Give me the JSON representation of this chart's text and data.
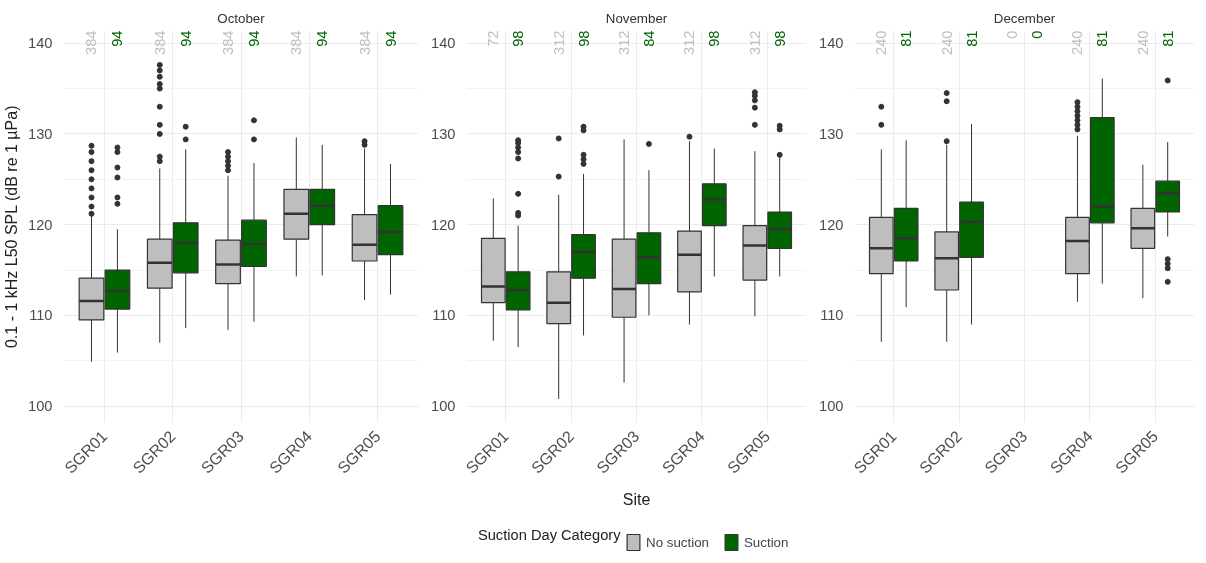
{
  "chart_data": [
    {
      "type": "box",
      "title": "October",
      "ylabel": "0.1 - 1 kHz L50 SPL (dB re 1 µPa)",
      "categories": [
        "SGR01",
        "SGR02",
        "SGR03",
        "SGR04",
        "SGR05"
      ],
      "ylim": [
        98.2,
        141.4
      ],
      "yticks": [
        100,
        110,
        120,
        130,
        140
      ],
      "grid": true,
      "series": [
        {
          "color": "#bebebe",
          "value_labels": [
            "384",
            "384",
            "384",
            "384",
            "384"
          ],
          "boxes": [
            {
              "low": 104.9,
              "q1": 109.5,
              "median": 111.6,
              "q3": 114.1,
              "high": 121.0,
              "outliers": [
                121.2,
                122,
                123,
                124,
                125,
                126,
                127,
                128,
                128.7
              ]
            },
            {
              "low": 107.0,
              "q1": 113.0,
              "median": 115.8,
              "q3": 118.4,
              "high": 126.2,
              "outliers": [
                127,
                127.5,
                130,
                131,
                133,
                135,
                135.5,
                136.3,
                137,
                137.6
              ]
            },
            {
              "low": 108.4,
              "q1": 113.5,
              "median": 115.6,
              "q3": 118.3,
              "high": 125.4,
              "outliers": [
                126,
                126.5,
                127,
                127.5,
                128
              ]
            },
            {
              "low": 114.3,
              "q1": 118.4,
              "median": 121.2,
              "q3": 123.9,
              "high": 129.6
            },
            {
              "low": 111.7,
              "q1": 116.0,
              "median": 117.8,
              "q3": 121.1,
              "high": 128.4,
              "outliers": [
                128.8,
                129.2
              ]
            }
          ]
        },
        {
          "color": "#006400",
          "value_labels": [
            "94",
            "94",
            "94",
            "94",
            "94"
          ],
          "boxes": [
            {
              "low": 105.9,
              "q1": 110.7,
              "median": 112.7,
              "q3": 115.0,
              "high": 119.5,
              "outliers": [
                122.3,
                123,
                125.2,
                126.3,
                128,
                128.5
              ]
            },
            {
              "low": 108.6,
              "q1": 114.7,
              "median": 118.0,
              "q3": 120.2,
              "high": 128.3,
              "outliers": [
                129.4,
                130.8
              ]
            },
            {
              "low": 109.3,
              "q1": 115.4,
              "median": 117.9,
              "q3": 120.5,
              "high": 126.8,
              "outliers": [
                129.4,
                131.5
              ]
            },
            {
              "low": 114.4,
              "q1": 120.0,
              "median": 122.1,
              "q3": 123.9,
              "high": 128.8
            },
            {
              "low": 112.3,
              "q1": 116.7,
              "median": 119.2,
              "q3": 122.1,
              "high": 126.7
            }
          ]
        }
      ]
    },
    {
      "type": "box",
      "title": "November",
      "xlabel": "Site",
      "legend_title": "Suction Day Category",
      "legend": "bottom",
      "categories": [
        "SGR01",
        "SGR02",
        "SGR03",
        "SGR04",
        "SGR05"
      ],
      "ylim": [
        98.2,
        141.4
      ],
      "yticks": [
        100,
        110,
        120,
        130,
        140
      ],
      "grid": true,
      "series": [
        {
          "name": "No suction",
          "color": "#bebebe",
          "value_labels": [
            "72",
            "312",
            "312",
            "312",
            "312"
          ],
          "boxes": [
            {
              "low": 107.2,
              "q1": 111.4,
              "median": 113.2,
              "q3": 118.5,
              "high": 122.9
            },
            {
              "low": 100.8,
              "q1": 109.1,
              "median": 111.4,
              "q3": 114.8,
              "high": 123.3,
              "outliers": [
                125.3,
                129.5
              ]
            },
            {
              "low": 102.6,
              "q1": 109.8,
              "median": 112.9,
              "q3": 118.4,
              "high": 129.4
            },
            {
              "low": 109.0,
              "q1": 112.6,
              "median": 116.7,
              "q3": 119.3,
              "high": 129.2,
              "outliers": [
                129.7
              ]
            },
            {
              "low": 109.9,
              "q1": 113.9,
              "median": 117.7,
              "q3": 119.9,
              "high": 128.1,
              "outliers": [
                131,
                132.9,
                133.7,
                134.2,
                134.6
              ]
            }
          ]
        },
        {
          "name": "Suction",
          "color": "#006400",
          "value_labels": [
            "98",
            "98",
            "84",
            "98",
            "98"
          ],
          "boxes": [
            {
              "low": 106.5,
              "q1": 110.6,
              "median": 112.8,
              "q3": 114.8,
              "high": 119.9,
              "outliers": [
                121,
                121.3,
                123.4,
                127.3,
                128,
                128.5,
                129,
                129.3
              ]
            },
            {
              "low": 107.8,
              "q1": 114.1,
              "median": 117.0,
              "q3": 118.9,
              "high": 125.6,
              "outliers": [
                126.7,
                127.2,
                127.7,
                130.4,
                130.8
              ]
            },
            {
              "low": 110.0,
              "q1": 113.5,
              "median": 116.4,
              "q3": 119.1,
              "high": 126.0,
              "outliers": [
                128.9
              ]
            },
            {
              "low": 114.3,
              "q1": 119.9,
              "median": 122.8,
              "q3": 124.5,
              "high": 128.4
            },
            {
              "low": 114.3,
              "q1": 117.4,
              "median": 119.5,
              "q3": 121.4,
              "high": 127.5,
              "outliers": [
                127.7,
                130.5,
                130.9
              ]
            }
          ]
        }
      ]
    },
    {
      "type": "box",
      "title": "December",
      "categories": [
        "SGR01",
        "SGR02",
        "SGR03",
        "SGR04",
        "SGR05"
      ],
      "ylim": [
        98.2,
        141.4
      ],
      "yticks": [
        100,
        110,
        120,
        130,
        140
      ],
      "grid": true,
      "series": [
        {
          "color": "#bebebe",
          "value_labels": [
            "240",
            "240",
            "0",
            "240",
            "240"
          ],
          "boxes": [
            {
              "low": 107.1,
              "q1": 114.6,
              "median": 117.4,
              "q3": 120.8,
              "high": 128.3,
              "outliers": [
                131,
                133
              ]
            },
            {
              "low": 107.1,
              "q1": 112.8,
              "median": 116.3,
              "q3": 119.2,
              "high": 128.8,
              "outliers": [
                129.2,
                133.6,
                134.5
              ]
            },
            null,
            {
              "low": 111.5,
              "q1": 114.6,
              "median": 118.2,
              "q3": 120.8,
              "high": 129.8,
              "outliers": [
                130.5,
                131,
                131.5,
                132,
                132.5,
                133,
                133.5
              ]
            },
            {
              "low": 111.9,
              "q1": 117.4,
              "median": 119.6,
              "q3": 121.8,
              "high": 126.6
            }
          ]
        },
        {
          "color": "#006400",
          "value_labels": [
            "81",
            "81",
            "0",
            "81",
            "81"
          ],
          "boxes": [
            {
              "low": 110.9,
              "q1": 116.0,
              "median": 118.5,
              "q3": 121.8,
              "high": 129.3
            },
            {
              "low": 109.0,
              "q1": 116.4,
              "median": 120.3,
              "q3": 122.5,
              "high": 131.1
            },
            null,
            {
              "low": 113.5,
              "q1": 120.2,
              "median": 122.0,
              "q3": 131.8,
              "high": 136.1
            },
            {
              "low": 118.7,
              "q1": 121.4,
              "median": 123.5,
              "q3": 124.8,
              "high": 129.1,
              "outliers": [
                113.7,
                115.2,
                115.7,
                116.2,
                135.9
              ]
            }
          ]
        }
      ]
    }
  ]
}
